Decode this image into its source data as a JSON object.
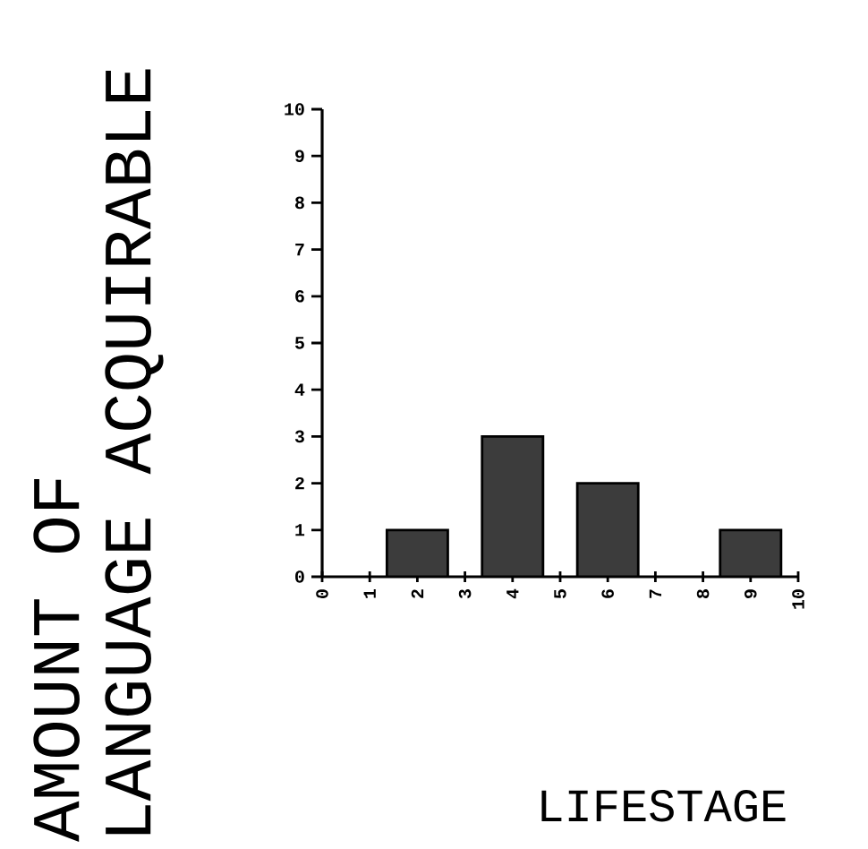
{
  "chart_data": {
    "type": "bar",
    "x": [
      2,
      4,
      6,
      9
    ],
    "values": [
      1,
      3,
      2,
      1
    ],
    "color": "#3c3c3c",
    "xlabel": "LIFESTAGE",
    "ylabel": "AMOUNT OF LANGUAGE ACQUIRABLE",
    "xlim": [
      0,
      10
    ],
    "xticks": [
      0,
      1,
      2,
      3,
      4,
      5,
      6,
      7,
      8,
      9,
      10
    ],
    "ylim": [
      0,
      10
    ],
    "yticks": [
      0,
      1,
      2,
      3,
      4,
      5,
      6,
      7,
      8,
      9,
      10
    ]
  }
}
